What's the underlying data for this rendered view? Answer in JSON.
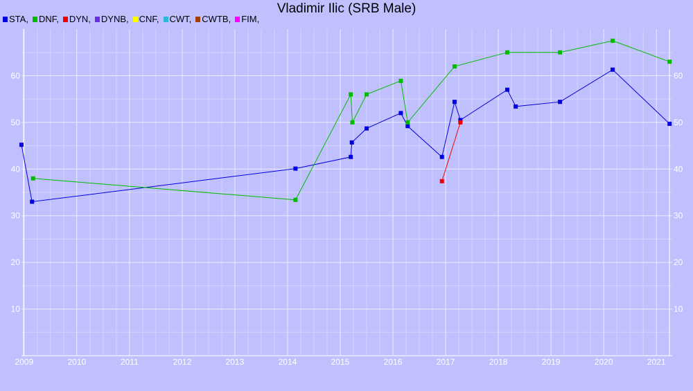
{
  "chart_data": {
    "type": "line",
    "title": "Vladimir Ilic (SRB Male)",
    "xlabel": "",
    "ylabel": "",
    "xlim": [
      2008.95,
      2021.3
    ],
    "ylim": [
      0,
      70
    ],
    "grid": true,
    "legend_position": "top-left",
    "x_ticks": [
      2009,
      2010,
      2011,
      2012,
      2013,
      2014,
      2015,
      2016,
      2017,
      2018,
      2019,
      2020,
      2021
    ],
    "y_ticks": [
      10,
      20,
      30,
      40,
      50,
      60
    ],
    "legend": [
      {
        "label": "STA,",
        "color": "#0000dd"
      },
      {
        "label": "DNF,",
        "color": "#00bb00"
      },
      {
        "label": "DYN,",
        "color": "#ee0000"
      },
      {
        "label": "DYNB,",
        "color": "#6a2ee0"
      },
      {
        "label": "CNF,",
        "color": "#ffff00"
      },
      {
        "label": "CWT,",
        "color": "#29b8d8"
      },
      {
        "label": "CWTB,",
        "color": "#a0400a"
      },
      {
        "label": "FIM,",
        "color": "#ff00ff"
      }
    ],
    "series": [
      {
        "name": "STA",
        "color": "#0000dd",
        "points": [
          [
            2008.95,
            45.2
          ],
          [
            2009.15,
            33
          ],
          [
            2014.15,
            40.1
          ],
          [
            2015.2,
            42.6
          ],
          [
            2015.22,
            45.7
          ],
          [
            2015.5,
            48.7
          ],
          [
            2016.15,
            52
          ],
          [
            2016.28,
            49.2
          ],
          [
            2016.93,
            42.6
          ],
          [
            2017.17,
            54.4
          ],
          [
            2017.28,
            50.5
          ],
          [
            2018.17,
            57
          ],
          [
            2018.33,
            53.4
          ],
          [
            2019.17,
            54.4
          ],
          [
            2020.17,
            61.3
          ],
          [
            2021.25,
            49.7
          ]
        ]
      },
      {
        "name": "DNF",
        "color": "#00bb00",
        "points": [
          [
            2009.17,
            38
          ],
          [
            2014.15,
            33.4
          ],
          [
            2015.2,
            56
          ],
          [
            2015.23,
            50
          ],
          [
            2015.5,
            56
          ],
          [
            2016.15,
            58.9
          ],
          [
            2016.28,
            50
          ],
          [
            2017.17,
            62
          ],
          [
            2018.17,
            65
          ],
          [
            2019.17,
            65
          ],
          [
            2020.17,
            67.5
          ],
          [
            2021.25,
            63
          ]
        ]
      },
      {
        "name": "DYN",
        "color": "#ee0000",
        "points": [
          [
            2016.93,
            37.4
          ],
          [
            2017.28,
            50
          ]
        ]
      }
    ]
  }
}
